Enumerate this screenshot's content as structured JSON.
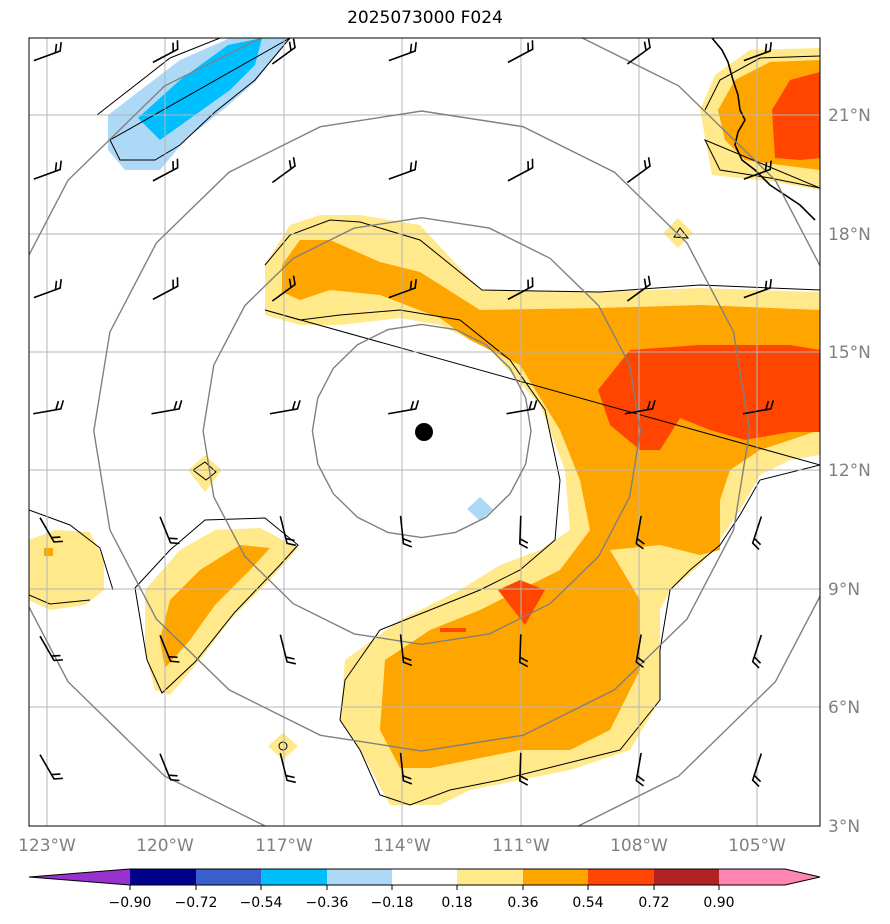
{
  "title": "2025073000 F024",
  "map": {
    "lon_range": [
      -123.5,
      -103
    ],
    "lat_range": [
      3,
      23
    ],
    "lon_ticks": [
      {
        "value": -123,
        "label": "123°W"
      },
      {
        "value": -120,
        "label": "120°W"
      },
      {
        "value": -117,
        "label": "117°W"
      },
      {
        "value": -114,
        "label": "114°W"
      },
      {
        "value": -111,
        "label": "111°W"
      },
      {
        "value": -108,
        "label": "108°W"
      },
      {
        "value": -105,
        "label": "105°W"
      }
    ],
    "lat_ticks": [
      {
        "value": 3,
        "label": "3°N"
      },
      {
        "value": 6,
        "label": "6°N"
      },
      {
        "value": 9,
        "label": "9°N"
      },
      {
        "value": 12,
        "label": "12°N"
      },
      {
        "value": 15,
        "label": "15°N"
      },
      {
        "value": 18,
        "label": "18°N"
      },
      {
        "value": 21,
        "label": "21°N"
      }
    ],
    "storm_center": {
      "lon": -113.5,
      "lat": 13
    },
    "range_rings_deg": [
      2.7,
      5.4,
      8.1,
      10.8
    ]
  },
  "colorbar": {
    "levels": [
      "−0.90",
      "−0.72",
      "−0.54",
      "−0.36",
      "−0.18",
      "0.18",
      "0.36",
      "0.54",
      "0.72",
      "0.90"
    ],
    "colors": [
      "#9932cc",
      "#00008b",
      "#3a5fcd",
      "#00bfff",
      "#add8f6",
      "#ffffff",
      "#ffe98a",
      "#ffa500",
      "#ff4500",
      "#b22222",
      "#ff85b3"
    ]
  }
}
